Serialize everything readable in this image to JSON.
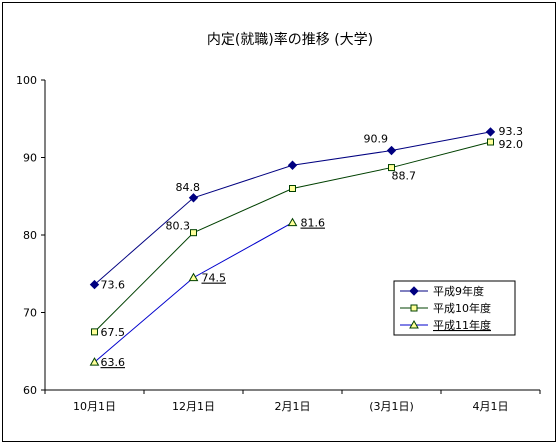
{
  "chart_data": {
    "type": "line",
    "title": "内定(就職)率の推移 (大学)",
    "xlabel": "",
    "ylabel": "",
    "categories": [
      "10月1日",
      "12月1日",
      "2月1日",
      "(3月1日)",
      "4月1日"
    ],
    "ylim": [
      60,
      100
    ],
    "yticks": [
      60,
      70,
      80,
      90,
      100
    ],
    "grid": false,
    "legend_position": "right",
    "series": [
      {
        "name": "平成9年度",
        "values": [
          73.6,
          84.8,
          89.0,
          90.9,
          93.3
        ],
        "labels": [
          "73.6",
          "84.8",
          "",
          "90.9",
          "93.3"
        ],
        "color": "#000080",
        "marker": "diamond"
      },
      {
        "name": "平成10年度",
        "values": [
          67.5,
          80.3,
          86.0,
          88.7,
          92.0
        ],
        "labels": [
          "67.5",
          "80.3",
          "",
          "88.7",
          "92.0"
        ],
        "color": "#004000",
        "marker": "square"
      },
      {
        "name": "平成11年度",
        "values": [
          63.6,
          74.5,
          81.6,
          null,
          null
        ],
        "labels": [
          "63.6",
          "74.5",
          "81.6",
          "",
          ""
        ],
        "color": "#0000cc",
        "marker": "triangle"
      }
    ]
  }
}
